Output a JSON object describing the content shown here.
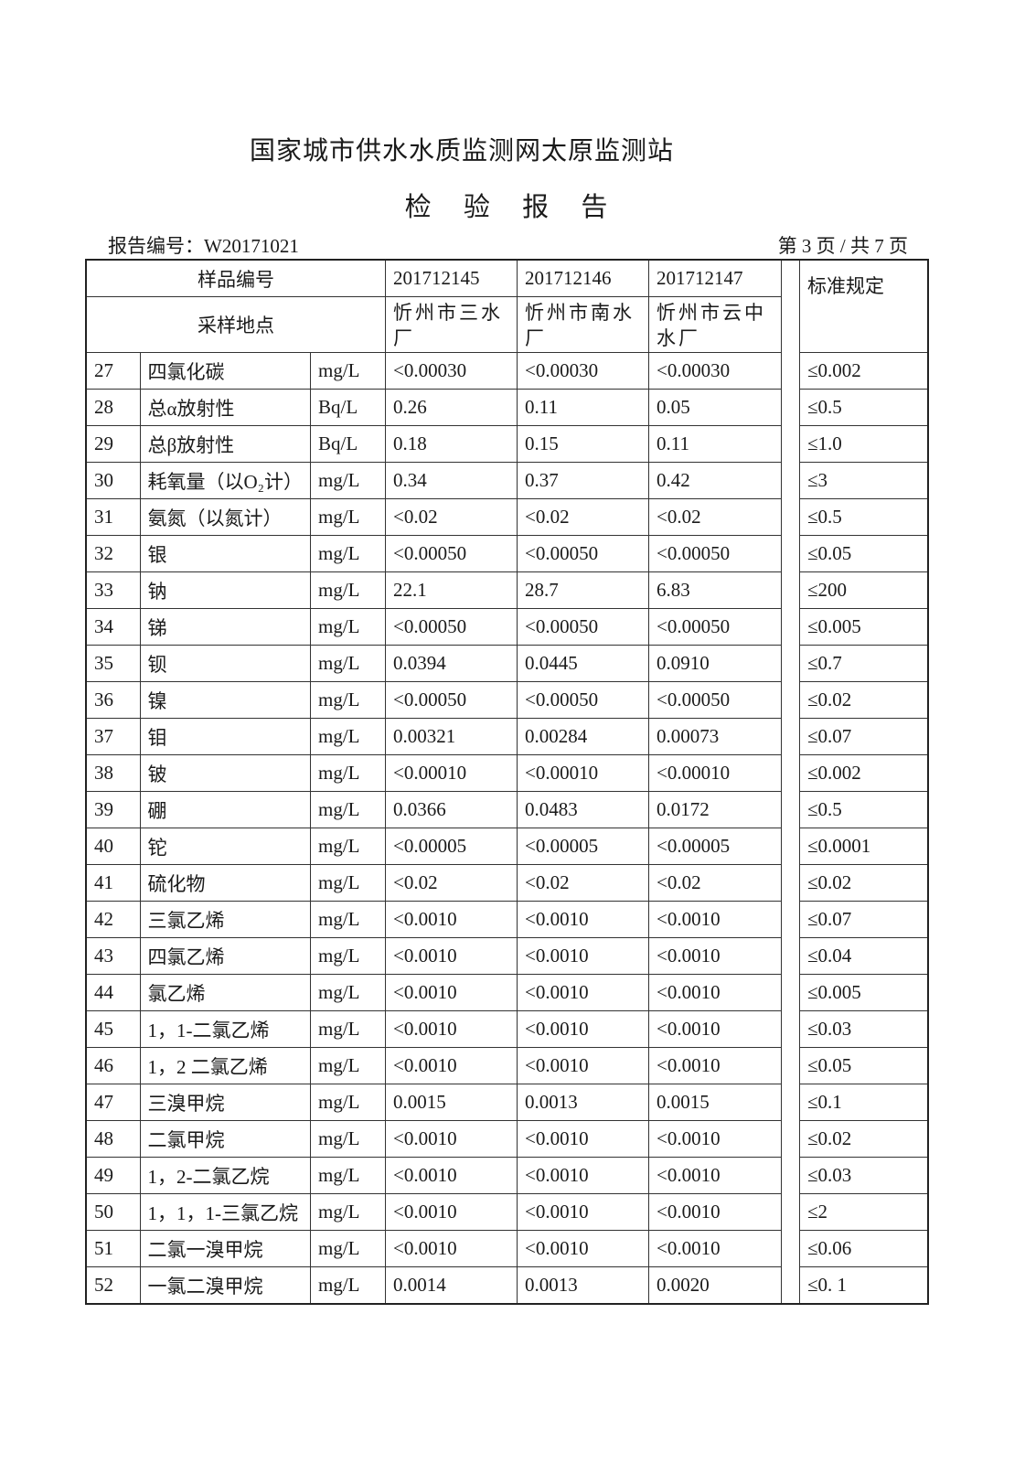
{
  "header": {
    "organization": "国家城市供水水质监测网太原监测站",
    "document_title": "检 验 报 告",
    "report_number": "报告编号：W20171021",
    "page_info": "第 3 页 / 共 7 页"
  },
  "table": {
    "sample_id_label": "样品编号",
    "location_label": "采样地点",
    "standard_label": "标准规定",
    "samples": [
      {
        "id": "201712145",
        "location": "忻州市三水厂"
      },
      {
        "id": "201712146",
        "location": "忻州市南水厂"
      },
      {
        "id": "201712147",
        "location": "忻州市云中水厂"
      }
    ],
    "rows": [
      {
        "no": "27",
        "item": "四氯化碳",
        "unit": "mg/L",
        "v1": "<0.00030",
        "v2": "<0.00030",
        "v3": "<0.00030",
        "std": "≤0.002"
      },
      {
        "no": "28",
        "item": "总α放射性",
        "unit": "Bq/L",
        "v1": "0.26",
        "v2": "0.11",
        "v3": "0.05",
        "std": "≤0.5"
      },
      {
        "no": "29",
        "item": "总β放射性",
        "unit": "Bq/L",
        "v1": "0.18",
        "v2": "0.15",
        "v3": "0.11",
        "std": "≤1.0"
      },
      {
        "no": "30",
        "item": "耗氧量（以O₂计）",
        "unit": "mg/L",
        "v1": "0.34",
        "v2": "0.37",
        "v3": "0.42",
        "std": "≤3"
      },
      {
        "no": "31",
        "item": "氨氮（以氮计）",
        "unit": "mg/L",
        "v1": "<0.02",
        "v2": "<0.02",
        "v3": "<0.02",
        "std": "≤0.5"
      },
      {
        "no": "32",
        "item": "银",
        "unit": "mg/L",
        "v1": "<0.00050",
        "v2": "<0.00050",
        "v3": "<0.00050",
        "std": "≤0.05"
      },
      {
        "no": "33",
        "item": "钠",
        "unit": "mg/L",
        "v1": "22.1",
        "v2": "28.7",
        "v3": "6.83",
        "std": "≤200"
      },
      {
        "no": "34",
        "item": "锑",
        "unit": "mg/L",
        "v1": "<0.00050",
        "v2": "<0.00050",
        "v3": "<0.00050",
        "std": "≤0.005"
      },
      {
        "no": "35",
        "item": "钡",
        "unit": "mg/L",
        "v1": "0.0394",
        "v2": "0.0445",
        "v3": "0.0910",
        "std": "≤0.7"
      },
      {
        "no": "36",
        "item": "镍",
        "unit": "mg/L",
        "v1": "<0.00050",
        "v2": "<0.00050",
        "v3": "<0.00050",
        "std": "≤0.02"
      },
      {
        "no": "37",
        "item": "钼",
        "unit": "mg/L",
        "v1": "0.00321",
        "v2": "0.00284",
        "v3": "0.00073",
        "std": "≤0.07"
      },
      {
        "no": "38",
        "item": "铍",
        "unit": "mg/L",
        "v1": "<0.00010",
        "v2": "<0.00010",
        "v3": "<0.00010",
        "std": "≤0.002"
      },
      {
        "no": "39",
        "item": "硼",
        "unit": "mg/L",
        "v1": "0.0366",
        "v2": "0.0483",
        "v3": "0.0172",
        "std": "≤0.5"
      },
      {
        "no": "40",
        "item": "铊",
        "unit": "mg/L",
        "v1": "<0.00005",
        "v2": "<0.00005",
        "v3": "<0.00005",
        "std": "≤0.0001"
      },
      {
        "no": "41",
        "item": "硫化物",
        "unit": "mg/L",
        "v1": "<0.02",
        "v2": "<0.02",
        "v3": "<0.02",
        "std": "≤0.02"
      },
      {
        "no": "42",
        "item": "三氯乙烯",
        "unit": "mg/L",
        "v1": "<0.0010",
        "v2": "<0.0010",
        "v3": "<0.0010",
        "std": "≤0.07"
      },
      {
        "no": "43",
        "item": "四氯乙烯",
        "unit": "mg/L",
        "v1": "<0.0010",
        "v2": "<0.0010",
        "v3": "<0.0010",
        "std": "≤0.04"
      },
      {
        "no": "44",
        "item": "氯乙烯",
        "unit": "mg/L",
        "v1": "<0.0010",
        "v2": "<0.0010",
        "v3": "<0.0010",
        "std": "≤0.005"
      },
      {
        "no": "45",
        "item": "1，1-二氯乙烯",
        "unit": "mg/L",
        "v1": "<0.0010",
        "v2": "<0.0010",
        "v3": "<0.0010",
        "std": "≤0.03"
      },
      {
        "no": "46",
        "item": "1，2 二氯乙烯",
        "unit": "mg/L",
        "v1": "<0.0010",
        "v2": "<0.0010",
        "v3": "<0.0010",
        "std": "≤0.05"
      },
      {
        "no": "47",
        "item": "三溴甲烷",
        "unit": "mg/L",
        "v1": "0.0015",
        "v2": "0.0013",
        "v3": "0.0015",
        "std": "≤0.1"
      },
      {
        "no": "48",
        "item": "二氯甲烷",
        "unit": "mg/L",
        "v1": "<0.0010",
        "v2": "<0.0010",
        "v3": "<0.0010",
        "std": "≤0.02"
      },
      {
        "no": "49",
        "item": "1，2-二氯乙烷",
        "unit": "mg/L",
        "v1": "<0.0010",
        "v2": "<0.0010",
        "v3": "<0.0010",
        "std": "≤0.03"
      },
      {
        "no": "50",
        "item": "1，1，1-三氯乙烷",
        "unit": "mg/L",
        "v1": "<0.0010",
        "v2": "<0.0010",
        "v3": "<0.0010",
        "std": "≤2"
      },
      {
        "no": "51",
        "item": "二氯一溴甲烷",
        "unit": "mg/L",
        "v1": "<0.0010",
        "v2": "<0.0010",
        "v3": "<0.0010",
        "std": "≤0.06"
      },
      {
        "no": "52",
        "item": "一氯二溴甲烷",
        "unit": "mg/L",
        "v1": "0.0014",
        "v2": "0.0013",
        "v3": "0.0020",
        "std": "≤0. 1"
      }
    ]
  }
}
